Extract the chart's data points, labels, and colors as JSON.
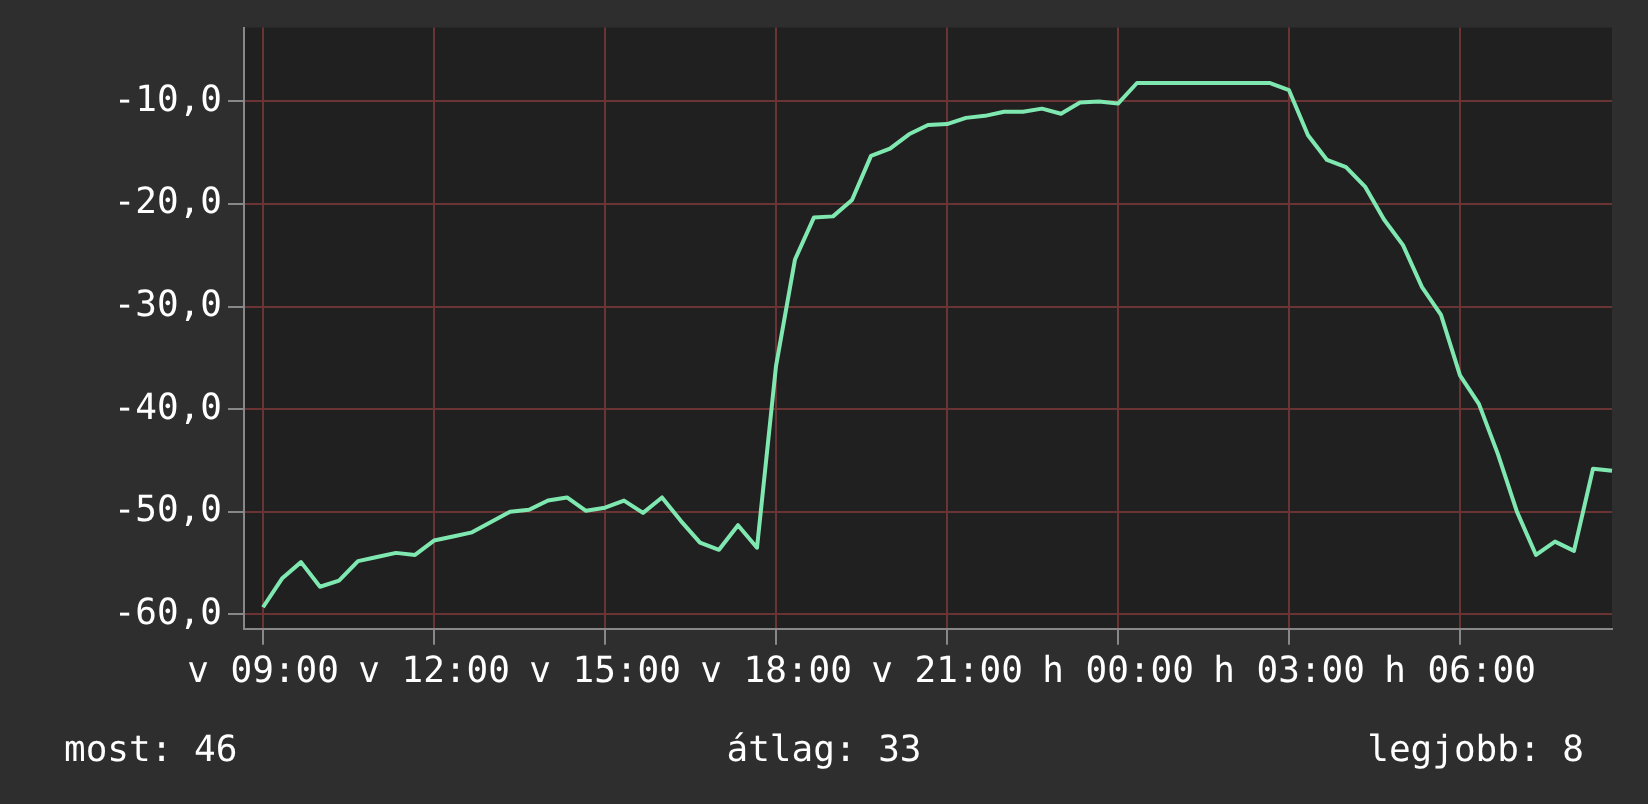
{
  "chart_data": {
    "type": "line",
    "categories": [
      null,
      "v 09:00",
      null,
      null,
      null,
      null,
      null,
      null,
      null,
      null,
      "v 12:00",
      null,
      null,
      null,
      null,
      null,
      null,
      null,
      null,
      "v 15:00",
      null,
      null,
      null,
      null,
      null,
      null,
      null,
      null,
      "v 18:00",
      null,
      null,
      null,
      null,
      null,
      null,
      null,
      null,
      "v 21:00",
      null,
      null,
      null,
      null,
      null,
      null,
      null,
      null,
      "h 00:00",
      null,
      null,
      null,
      null,
      null,
      null,
      null,
      null,
      "h 03:00",
      null,
      null,
      null,
      null,
      null,
      null,
      null,
      null,
      "h 06:00",
      null,
      null,
      null,
      null,
      null,
      null,
      null,
      null
    ],
    "series": [
      {
        "color": "#7fe8b0",
        "values": [
          null,
          -59.3,
          -56.5,
          -54.9,
          -57.3,
          -56.7,
          -54.8,
          -54.4,
          -54.0,
          -54.2,
          -52.8,
          -52.4,
          -52.0,
          -51.0,
          -50.0,
          -49.8,
          -48.9,
          -48.6,
          -49.9,
          -49.6,
          -48.9,
          -50.1,
          -48.6,
          -50.9,
          -53.0,
          -53.7,
          -51.3,
          -53.5,
          -35.8,
          -25.4,
          -21.3,
          -21.2,
          -19.6,
          -15.3,
          -14.6,
          -13.2,
          -12.3,
          -12.2,
          -11.6,
          -11.4,
          -11.0,
          -11.0,
          -10.7,
          -11.2,
          -10.1,
          -10.0,
          -10.2,
          -8.2,
          -8.2,
          -8.2,
          -8.2,
          -8.2,
          -8.2,
          -8.2,
          -8.2,
          -8.9,
          -13.3,
          -15.7,
          -16.4,
          -18.3,
          -21.5,
          -24.0,
          -28.1,
          -30.8,
          -36.7,
          -39.5,
          -44.4,
          -50.0,
          -54.2,
          -52.9,
          -53.8,
          -45.8,
          -46.0
        ]
      }
    ],
    "ylim": [
      -61.4,
      -2.8
    ],
    "yticks": [
      {
        "value": -60,
        "label": "-60,0"
      },
      {
        "value": -50,
        "label": "-50,0"
      },
      {
        "value": -40,
        "label": "-40,0"
      },
      {
        "value": -30,
        "label": "-30,0"
      },
      {
        "value": -20,
        "label": "-20,0"
      },
      {
        "value": -10,
        "label": "-10,0"
      }
    ],
    "grid": true,
    "annotations": [
      "most: 46",
      "átlag: 33",
      "legjobb: 8"
    ]
  }
}
